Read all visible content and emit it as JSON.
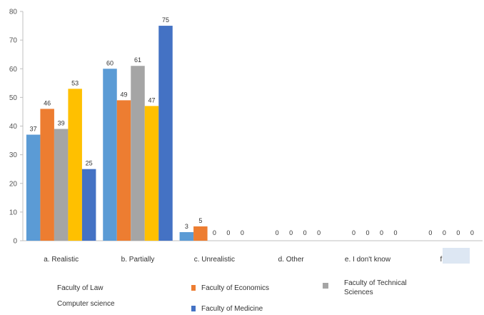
{
  "chart_data": {
    "type": "bar",
    "title": "",
    "xlabel": "",
    "ylabel": "",
    "ylim": [
      0,
      80
    ],
    "yticks": [
      0,
      10,
      20,
      30,
      40,
      50,
      60,
      70,
      80
    ],
    "grid": false,
    "legend_position": "bottom",
    "categories": [
      "a. Realistic",
      "b. Partially",
      "c. Unrealistic",
      "d. Other",
      "e. I don't know",
      "f. -"
    ],
    "series": [
      {
        "name": "Faculty of Law",
        "color": "#5b9bd5",
        "values": [
          37,
          60,
          3,
          null,
          null,
          null
        ]
      },
      {
        "name": "Faculty of Economics",
        "color": "#ed7d31",
        "values": [
          46,
          49,
          5,
          0,
          0,
          0
        ]
      },
      {
        "name": "Faculty of Technical Sciences",
        "color": "#a5a5a5",
        "values": [
          39,
          61,
          0,
          0,
          0,
          0
        ]
      },
      {
        "name": "Computer science",
        "color": "#ffc000",
        "values": [
          53,
          47,
          0,
          0,
          0,
          0
        ]
      },
      {
        "name": "Faculty of Medicine",
        "color": "#4472c4",
        "values": [
          25,
          75,
          0,
          0,
          0,
          0
        ]
      }
    ]
  }
}
